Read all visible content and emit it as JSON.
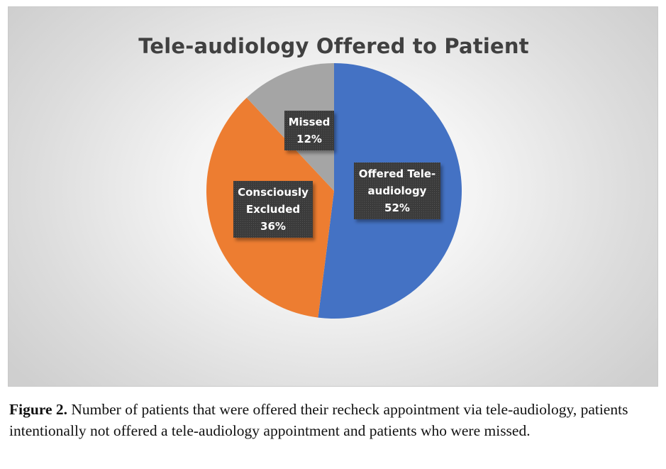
{
  "chart_data": {
    "type": "pie",
    "title": "Tele-audiology Offered to Patient",
    "slices": [
      {
        "label": "Offered Tele-audiology",
        "label_lines": [
          "Offered Tele-",
          "audiology"
        ],
        "value": 52,
        "value_label": "52%",
        "color": "#4472C4"
      },
      {
        "label": "Consciously Excluded",
        "label_lines": [
          "Consciously",
          "Excluded"
        ],
        "value": 36,
        "value_label": "36%",
        "color": "#ED7D31"
      },
      {
        "label": "Missed",
        "label_lines": [
          "Missed"
        ],
        "value": 12,
        "value_label": "12%",
        "color": "#A5A5A5"
      }
    ],
    "start_angle": "12 o'clock",
    "direction": "clockwise",
    "legend": "none",
    "data_label_style": "dark callout box, white bold text"
  },
  "caption": {
    "lead": "Figure 2.",
    "text": " Number of patients that were offered their recheck appointment via tele-audiology, patients intentionally not offered a tele-audiology appointment and patients who were missed."
  }
}
